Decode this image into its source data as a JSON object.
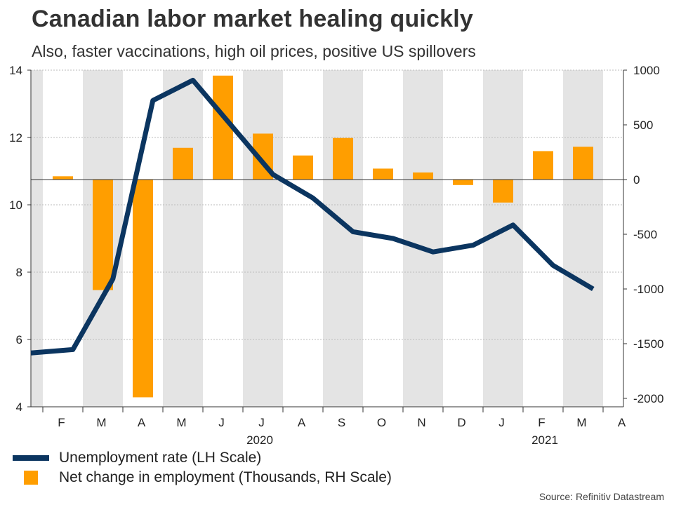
{
  "title": "Canadian labor market healing quickly",
  "subtitle": "Also, faster vaccinations, high oil prices, positive US spillovers",
  "legend": {
    "line_label": "Unemployment rate (LH Scale)",
    "bar_label": "Net change in employment (Thousands, RH Scale)"
  },
  "source": "Source: Refinitiv Datastream",
  "colors": {
    "line": "#0b3560",
    "bar": "#ff9e00",
    "shade": "#e4e4e4",
    "grid": "#bbbbbb"
  },
  "chart_data": {
    "type": "bar+line",
    "title": "Canadian labor market healing quickly",
    "x_month_labels": [
      "F",
      "M",
      "A",
      "M",
      "J",
      "J",
      "A",
      "S",
      "O",
      "N",
      "D",
      "J",
      "F",
      "M",
      "A"
    ],
    "year_labels": [
      "2020",
      "2021"
    ],
    "left_axis": {
      "label": "Unemployment rate (LH Scale)",
      "ylim": [
        4,
        14
      ],
      "ticks": [
        4,
        6,
        8,
        10,
        12,
        14
      ]
    },
    "right_axis": {
      "label": "Net change in employment (Thousands, RH Scale)",
      "ylim": [
        -2100,
        1000
      ],
      "ticks": [
        1000,
        500,
        0,
        -500,
        -1000,
        -1500,
        -2000
      ]
    },
    "series": [
      {
        "name": "Unemployment rate (LH Scale)",
        "type": "line",
        "axis": "left",
        "points": [
          {
            "x": 0.0,
            "y": 5.6
          },
          {
            "x": 0.75,
            "y": 5.7
          },
          {
            "x": 1.75,
            "y": 7.8
          },
          {
            "x": 2.75,
            "y": 13.1
          },
          {
            "x": 3.75,
            "y": 13.7
          },
          {
            "x": 4.75,
            "y": 12.3
          },
          {
            "x": 5.75,
            "y": 10.9
          },
          {
            "x": 6.75,
            "y": 10.2
          },
          {
            "x": 7.75,
            "y": 9.2
          },
          {
            "x": 8.75,
            "y": 9.0
          },
          {
            "x": 9.75,
            "y": 8.6
          },
          {
            "x": 10.75,
            "y": 8.8
          },
          {
            "x": 11.75,
            "y": 9.4
          },
          {
            "x": 12.75,
            "y": 8.2
          },
          {
            "x": 13.75,
            "y": 7.5
          }
        ]
      },
      {
        "name": "Net change in employment (Thousands, RH Scale)",
        "type": "bar",
        "axis": "right",
        "categories": [
          "Feb-20",
          "Mar-20",
          "Apr-20",
          "May-20",
          "Jun-20",
          "Jul-20",
          "Aug-20",
          "Sep-20",
          "Oct-20",
          "Nov-20",
          "Dec-20",
          "Jan-21",
          "Feb-21",
          "Mar-21"
        ],
        "values": [
          30,
          -1010,
          -1990,
          290,
          950,
          420,
          220,
          380,
          100,
          65,
          -50,
          -210,
          260,
          300
        ]
      }
    ]
  }
}
